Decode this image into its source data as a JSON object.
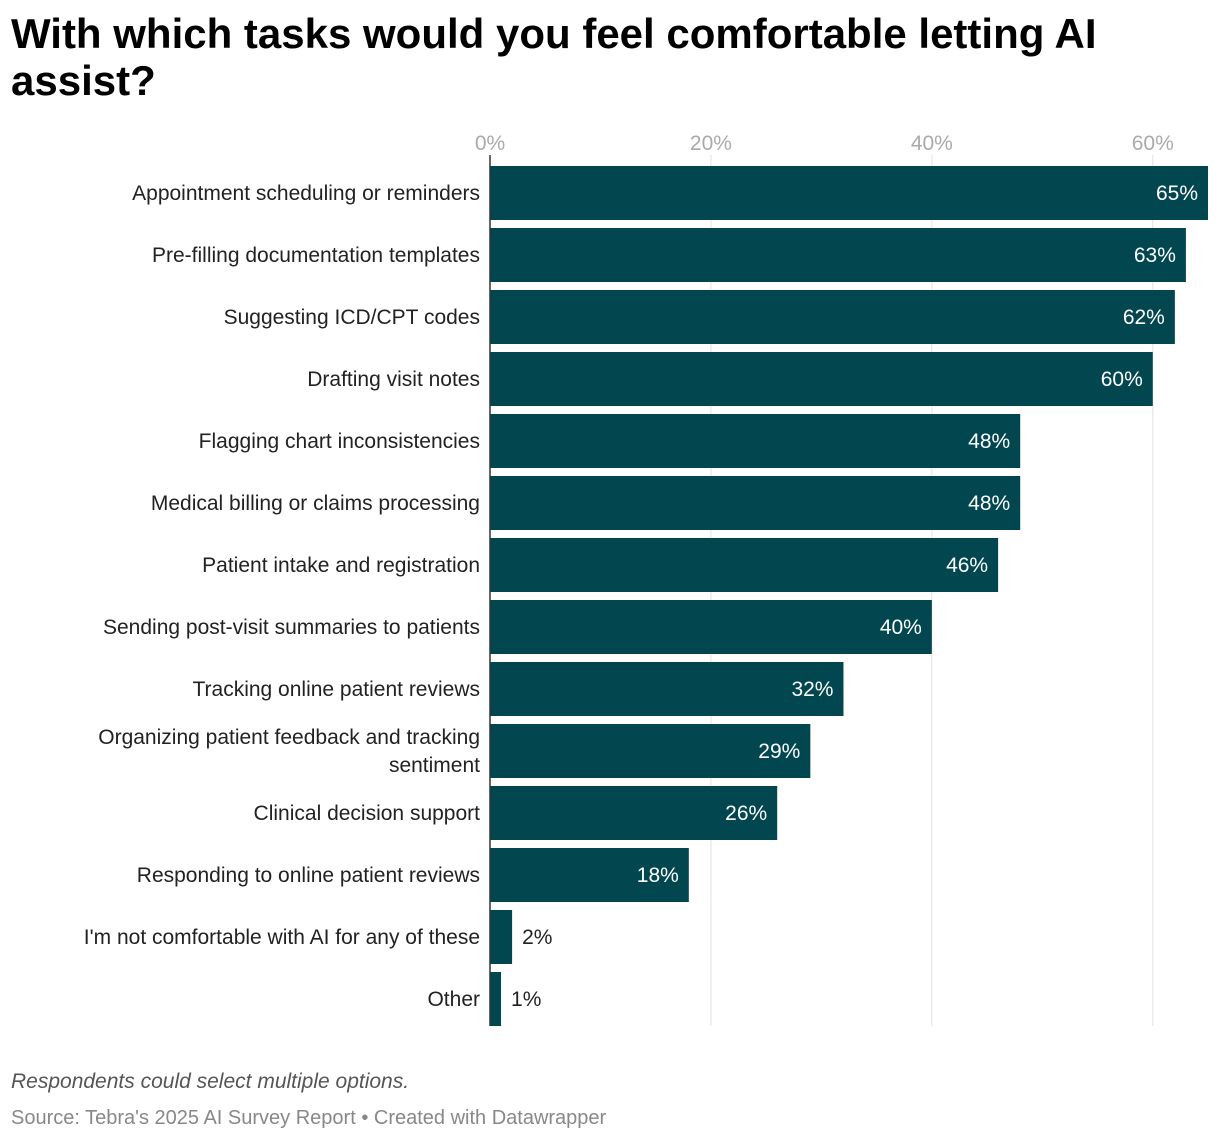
{
  "header": {
    "title": "With which tasks would you feel comfortable letting AI assist?"
  },
  "chart_data": {
    "type": "bar",
    "orientation": "horizontal",
    "xlim": [
      0,
      65
    ],
    "ticks": [
      0,
      20,
      40,
      60
    ],
    "tick_labels": [
      "0%",
      "20%",
      "40%",
      "60%"
    ],
    "value_suffix": "%",
    "grid": true,
    "bar_color": "#024750",
    "categories": [
      [
        "Appointment scheduling or reminders"
      ],
      [
        "Pre-filling documentation templates"
      ],
      [
        "Suggesting ICD/CPT codes"
      ],
      [
        "Drafting visit notes"
      ],
      [
        "Flagging chart inconsistencies"
      ],
      [
        "Medical billing or claims processing"
      ],
      [
        "Patient intake and registration"
      ],
      [
        "Sending post-visit summaries to patients"
      ],
      [
        "Tracking online patient reviews"
      ],
      [
        "Organizing patient feedback and tracking",
        "sentiment"
      ],
      [
        "Clinical decision support"
      ],
      [
        "Responding to online patient reviews"
      ],
      [
        "I'm not comfortable with AI for any of these"
      ],
      [
        "Other"
      ]
    ],
    "values": [
      65,
      63,
      62,
      60,
      48,
      48,
      46,
      40,
      32,
      29,
      26,
      18,
      2,
      1
    ]
  },
  "footer": {
    "note": "Respondents could select multiple options.",
    "source": "Source: Tebra's 2025 AI Survey Report • Created with Datawrapper"
  }
}
